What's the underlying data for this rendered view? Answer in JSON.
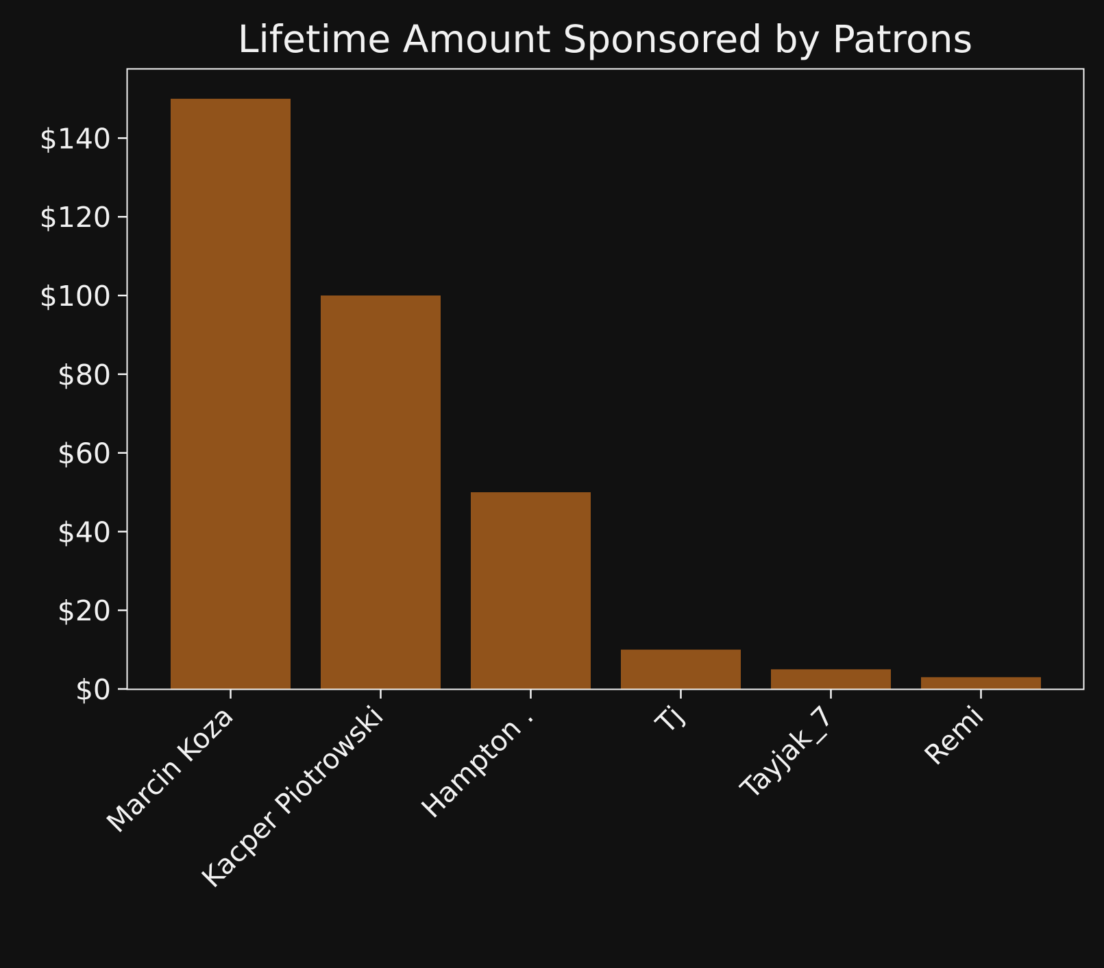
{
  "chart_data": {
    "type": "bar",
    "title": "Lifetime Amount Sponsored by Patrons",
    "xlabel": "",
    "ylabel": "",
    "categories": [
      "Marcin Koza",
      "Kacper Piotrowski",
      "Hampton .",
      "Tj",
      "Tayjak_7",
      "Remi"
    ],
    "values": [
      150,
      100,
      50,
      10,
      5,
      3
    ],
    "ylim": [
      0,
      157.5
    ],
    "yticks": [
      0,
      20,
      40,
      60,
      80,
      100,
      120,
      140
    ],
    "ytick_labels": [
      "$0",
      "$20",
      "$40",
      "$60",
      "$80",
      "$100",
      "$120",
      "$140"
    ],
    "grid": false,
    "legend": "none",
    "colors": {
      "background": "#111111",
      "bar": "#91531b",
      "axis": "#f2f2f2",
      "text": "#f2f2f2"
    }
  }
}
